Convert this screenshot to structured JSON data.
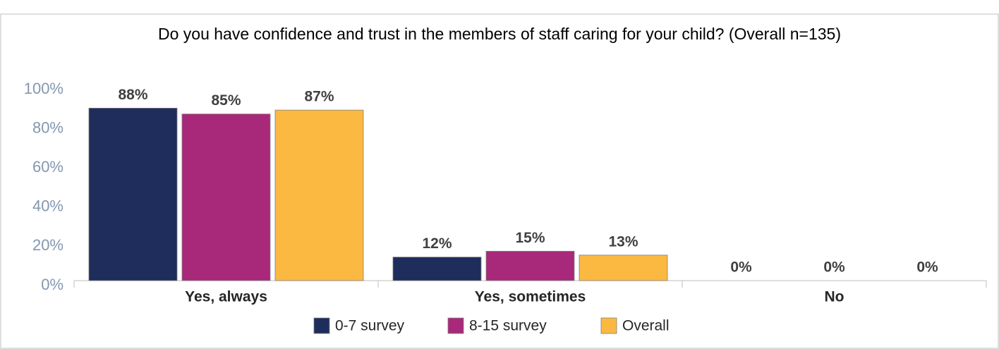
{
  "chart_data": {
    "type": "bar",
    "subtitle": "Do you have confidence and trust in the members of staff caring for your child? (Overall n=135)",
    "categories": [
      "Yes, always",
      "Yes, sometimes",
      "No"
    ],
    "series": [
      {
        "name": "0-7 survey",
        "color": "#1f2d5c",
        "values": [
          88,
          12,
          0
        ],
        "value_labels": [
          "88%",
          "12%",
          "0%"
        ]
      },
      {
        "name": "8-15 survey",
        "color": "#a8297a",
        "values": [
          85,
          15,
          0
        ],
        "value_labels": [
          "85%",
          "15%",
          "0%"
        ]
      },
      {
        "name": "Overall",
        "color": "#fbb941",
        "values": [
          87,
          13,
          0
        ],
        "value_labels": [
          "87%",
          "13%",
          "0%"
        ]
      }
    ],
    "ylim": [
      0,
      100
    ],
    "yticks": [
      {
        "value": 0,
        "label": "0%"
      },
      {
        "value": 20,
        "label": "20%"
      },
      {
        "value": 40,
        "label": "40%"
      },
      {
        "value": 60,
        "label": "60%"
      },
      {
        "value": 80,
        "label": "80%"
      },
      {
        "value": 100,
        "label": "100%"
      }
    ],
    "legend": "bottom"
  }
}
